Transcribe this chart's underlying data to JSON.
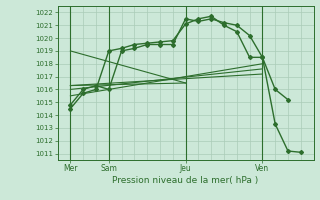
{
  "title": "Pression niveau de la mer( hPa )",
  "background_color": "#cce8d8",
  "grid_color": "#aaccb8",
  "line_color": "#2d6e2d",
  "ylim": [
    1010.5,
    1022.5
  ],
  "yticks": [
    1011,
    1012,
    1013,
    1014,
    1015,
    1016,
    1017,
    1018,
    1019,
    1020,
    1021,
    1022
  ],
  "xlim": [
    0,
    20
  ],
  "day_labels": [
    "Mer",
    "Sam",
    "Jeu",
    "Ven"
  ],
  "day_positions": [
    1,
    4,
    10,
    16
  ],
  "curve1_x": [
    1,
    2,
    3,
    4,
    5,
    6,
    7,
    8,
    9,
    10,
    11,
    12,
    13,
    14,
    15,
    16,
    17,
    18
  ],
  "curve1_y": [
    1014.5,
    1015.7,
    1016.0,
    1019.0,
    1019.2,
    1019.5,
    1019.6,
    1019.7,
    1019.8,
    1021.1,
    1021.5,
    1021.7,
    1021.0,
    1020.5,
    1018.5,
    1018.5,
    1016.0,
    1015.2
  ],
  "curve2_x": [
    1,
    2,
    3,
    4,
    5,
    6,
    7,
    8,
    9,
    10,
    11,
    12,
    13,
    14,
    15,
    16,
    17,
    18,
    19
  ],
  "curve2_y": [
    1014.8,
    1016.0,
    1016.3,
    1016.0,
    1019.0,
    1019.2,
    1019.5,
    1019.5,
    1019.5,
    1021.5,
    1021.3,
    1021.5,
    1021.2,
    1021.0,
    1020.2,
    1018.5,
    1013.3,
    1011.2,
    1011.1
  ],
  "straight_lines": [
    {
      "x": [
        1,
        16
      ],
      "y": [
        1015.5,
        1018.0
      ]
    },
    {
      "x": [
        1,
        16
      ],
      "y": [
        1016.0,
        1017.6
      ]
    },
    {
      "x": [
        1,
        16
      ],
      "y": [
        1016.3,
        1017.2
      ]
    }
  ],
  "cross_lines": [
    {
      "x": [
        1,
        10
      ],
      "y": [
        1019.0,
        1016.5
      ]
    },
    {
      "x": [
        1,
        10
      ],
      "y": [
        1016.3,
        1016.5
      ]
    }
  ]
}
